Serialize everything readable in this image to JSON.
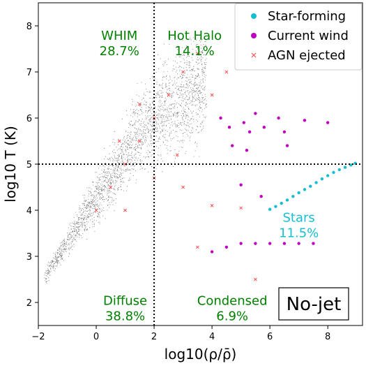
{
  "chart_data": {
    "type": "scatter",
    "title": "",
    "xlabel": "log10(ρ/ρ̄)",
    "ylabel": "log10 T (K)",
    "xlim": [
      -2,
      9.2
    ],
    "ylim": [
      1.5,
      8.5
    ],
    "xticks": [
      -2,
      0,
      2,
      4,
      6,
      8
    ],
    "yticks": [
      2,
      3,
      4,
      5,
      6,
      7,
      8
    ],
    "grid": false,
    "dividers": {
      "x": 2,
      "y": 5
    },
    "legend": {
      "placement": "top-right",
      "entries": [
        {
          "name": "Star-forming",
          "marker": "circle",
          "color": "#17becf"
        },
        {
          "name": "Current wind",
          "marker": "circle",
          "color": "#bf00bf"
        },
        {
          "name": "AGN ejected",
          "marker": "x",
          "color": "#ff4d4d"
        }
      ]
    },
    "phase_labels": [
      {
        "name": "WHIM",
        "value": "28.7%",
        "x": 0.8,
        "y": 7.7,
        "color": "#008000"
      },
      {
        "name": "Hot Halo",
        "value": "14.1%",
        "x": 3.4,
        "y": 7.7,
        "color": "#008000"
      },
      {
        "name": "Diffuse",
        "value": "38.8%",
        "x": 1.0,
        "y": 1.95,
        "color": "#008000"
      },
      {
        "name": "Condensed",
        "value": "6.9%",
        "x": 4.7,
        "y": 1.95,
        "color": "#008000"
      },
      {
        "name": "Stars",
        "value": "11.5%",
        "x": 7.0,
        "y": 3.75,
        "color": "#17becf"
      }
    ],
    "panel_label": "No-jet",
    "series": [
      {
        "name": "Star-forming",
        "color": "#17becf",
        "points": [
          [
            6.0,
            4.02
          ],
          [
            6.2,
            4.08
          ],
          [
            6.4,
            4.15
          ],
          [
            6.6,
            4.22
          ],
          [
            6.8,
            4.3
          ],
          [
            7.0,
            4.38
          ],
          [
            7.2,
            4.45
          ],
          [
            7.4,
            4.52
          ],
          [
            7.6,
            4.6
          ],
          [
            7.8,
            4.68
          ],
          [
            8.0,
            4.75
          ],
          [
            8.2,
            4.82
          ],
          [
            8.4,
            4.88
          ],
          [
            8.6,
            4.93
          ],
          [
            8.8,
            4.98
          ],
          [
            8.95,
            5.02
          ]
        ]
      },
      {
        "name": "Current wind",
        "color": "#bf00bf",
        "points": [
          [
            4.3,
            6.0
          ],
          [
            4.6,
            5.8
          ],
          [
            5.1,
            5.9
          ],
          [
            5.3,
            5.7
          ],
          [
            5.5,
            6.1
          ],
          [
            5.8,
            5.8
          ],
          [
            6.3,
            6.0
          ],
          [
            6.5,
            5.7
          ],
          [
            4.7,
            5.4
          ],
          [
            5.2,
            5.3
          ],
          [
            6.6,
            5.4
          ],
          [
            7.2,
            5.95
          ],
          [
            8.0,
            5.9
          ],
          [
            4.0,
            3.1
          ],
          [
            4.5,
            3.2
          ],
          [
            5.0,
            3.28
          ],
          [
            5.5,
            3.28
          ],
          [
            6.0,
            3.28
          ],
          [
            6.5,
            3.28
          ],
          [
            7.0,
            3.28
          ],
          [
            7.5,
            3.28
          ],
          [
            5.0,
            4.55
          ],
          [
            5.7,
            4.3
          ]
        ]
      },
      {
        "name": "AGN ejected",
        "color": "#ff4d4d",
        "points": [
          [
            0.0,
            4.0
          ],
          [
            0.5,
            4.5
          ],
          [
            1.0,
            5.0
          ],
          [
            1.5,
            5.5
          ],
          [
            2.0,
            6.0
          ],
          [
            2.5,
            6.5
          ],
          [
            3.0,
            7.0
          ],
          [
            3.5,
            7.4
          ],
          [
            2.0,
            4.7
          ],
          [
            3.0,
            4.5
          ],
          [
            4.0,
            4.1
          ],
          [
            5.0,
            4.05
          ],
          [
            3.5,
            3.2
          ],
          [
            5.5,
            2.5
          ],
          [
            1.0,
            4.0
          ],
          [
            0.8,
            5.5
          ],
          [
            1.5,
            6.3
          ],
          [
            4.0,
            6.5
          ],
          [
            4.5,
            7.0
          ],
          [
            2.8,
            5.2
          ]
        ]
      }
    ]
  }
}
